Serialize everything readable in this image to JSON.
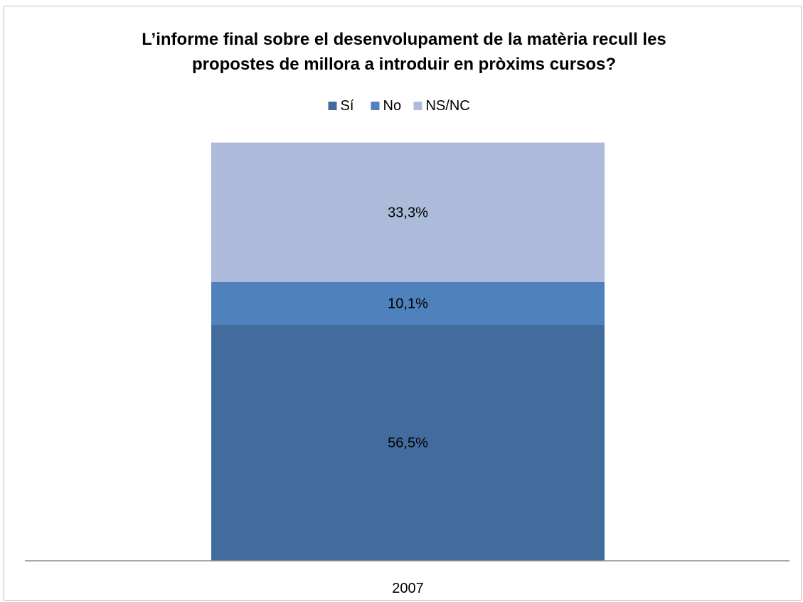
{
  "chart_data": {
    "type": "bar",
    "stacked": true,
    "title": "L’informe final sobre el desenvolupament de la matèria recull les propostes de millora a introduir en pròxims cursos?",
    "categories": [
      "2007"
    ],
    "series": [
      {
        "name": "Sí",
        "values": [
          56.5
        ],
        "labels": [
          "56,5%"
        ],
        "color": "#426c9e"
      },
      {
        "name": "No",
        "values": [
          10.1
        ],
        "labels": [
          "10,1%"
        ],
        "color": "#4f81bd"
      },
      {
        "name": "NS/NC",
        "values": [
          33.3
        ],
        "labels": [
          "33,3%"
        ],
        "color": "#abbbd9"
      }
    ],
    "ylim": [
      0,
      100
    ],
    "grid": false,
    "legend": "top"
  }
}
